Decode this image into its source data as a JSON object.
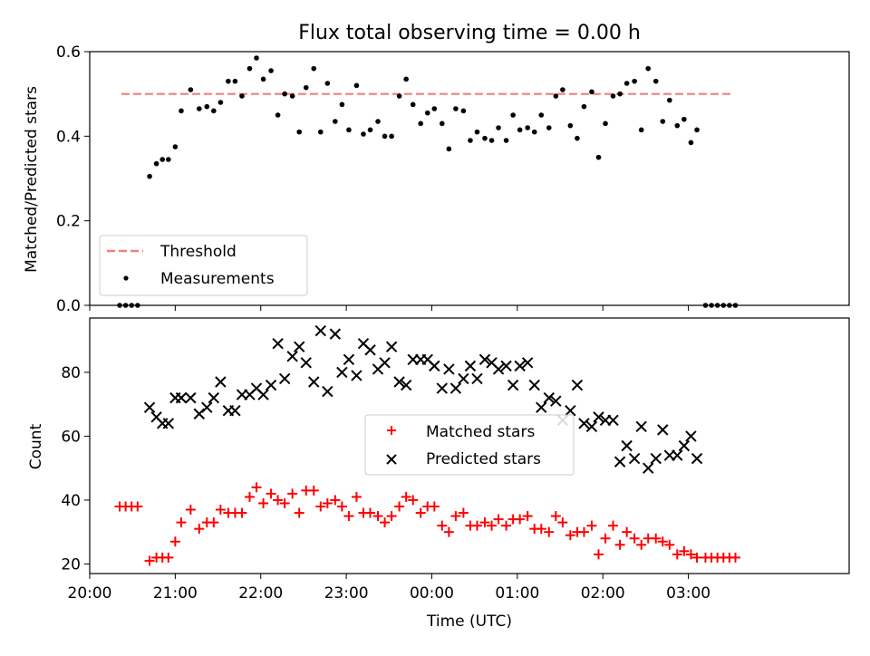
{
  "title": "Flux total observing time = 0.00 h",
  "colors": {
    "threshold": "#f08080",
    "matched": "#ff0000",
    "predicted": "#000000",
    "measure": "#000000"
  },
  "chart_data": [
    {
      "type": "scatter",
      "ylabel": "Matched/Predicted stars",
      "ylim": [
        0,
        0.6
      ],
      "yticks": [
        "0.0",
        "0.2",
        "0.4",
        "0.6"
      ],
      "xlim_hours": [
        20,
        28.88
      ],
      "threshold": {
        "value": 0.5,
        "x_start": 20.37,
        "x_end": 27.5
      },
      "legend": {
        "placement": "lower left",
        "threshold_label": "Threshold",
        "measurements_label": "Measurements"
      },
      "series": [
        {
          "name": "Measurements",
          "values": [
            [
              20.35,
              0
            ],
            [
              20.42,
              0
            ],
            [
              20.49,
              0
            ],
            [
              20.56,
              0
            ],
            [
              20.7,
              0.305
            ],
            [
              20.78,
              0.335
            ],
            [
              20.85,
              0.345
            ],
            [
              20.92,
              0.345
            ],
            [
              21.0,
              0.375
            ],
            [
              21.07,
              0.46
            ],
            [
              21.18,
              0.51
            ],
            [
              21.28,
              0.465
            ],
            [
              21.37,
              0.47
            ],
            [
              21.45,
              0.46
            ],
            [
              21.53,
              0.48
            ],
            [
              21.62,
              0.53
            ],
            [
              21.7,
              0.53
            ],
            [
              21.78,
              0.495
            ],
            [
              21.87,
              0.56
            ],
            [
              21.95,
              0.585
            ],
            [
              22.03,
              0.535
            ],
            [
              22.12,
              0.555
            ],
            [
              22.2,
              0.45
            ],
            [
              22.28,
              0.5
            ],
            [
              22.37,
              0.495
            ],
            [
              22.45,
              0.41
            ],
            [
              22.53,
              0.515
            ],
            [
              22.62,
              0.56
            ],
            [
              22.7,
              0.41
            ],
            [
              22.78,
              0.525
            ],
            [
              22.87,
              0.435
            ],
            [
              22.95,
              0.475
            ],
            [
              23.03,
              0.415
            ],
            [
              23.12,
              0.52
            ],
            [
              23.2,
              0.405
            ],
            [
              23.28,
              0.415
            ],
            [
              23.37,
              0.435
            ],
            [
              23.45,
              0.4
            ],
            [
              23.53,
              0.4
            ],
            [
              23.62,
              0.495
            ],
            [
              23.7,
              0.535
            ],
            [
              23.78,
              0.475
            ],
            [
              23.87,
              0.43
            ],
            [
              23.95,
              0.455
            ],
            [
              24.03,
              0.465
            ],
            [
              24.12,
              0.43
            ],
            [
              24.2,
              0.37
            ],
            [
              24.28,
              0.465
            ],
            [
              24.37,
              0.46
            ],
            [
              24.45,
              0.39
            ],
            [
              24.53,
              0.41
            ],
            [
              24.62,
              0.395
            ],
            [
              24.7,
              0.39
            ],
            [
              24.78,
              0.42
            ],
            [
              24.87,
              0.39
            ],
            [
              24.95,
              0.45
            ],
            [
              25.03,
              0.415
            ],
            [
              25.12,
              0.42
            ],
            [
              25.2,
              0.41
            ],
            [
              25.28,
              0.45
            ],
            [
              25.37,
              0.42
            ],
            [
              25.45,
              0.495
            ],
            [
              25.53,
              0.51
            ],
            [
              25.62,
              0.425
            ],
            [
              25.7,
              0.395
            ],
            [
              25.78,
              0.47
            ],
            [
              25.87,
              0.505
            ],
            [
              25.95,
              0.35
            ],
            [
              26.03,
              0.43
            ],
            [
              26.12,
              0.495
            ],
            [
              26.2,
              0.5
            ],
            [
              26.28,
              0.525
            ],
            [
              26.37,
              0.53
            ],
            [
              26.45,
              0.415
            ],
            [
              26.53,
              0.56
            ],
            [
              26.62,
              0.53
            ],
            [
              26.7,
              0.435
            ],
            [
              26.78,
              0.485
            ],
            [
              26.87,
              0.425
            ],
            [
              26.95,
              0.44
            ],
            [
              27.03,
              0.385
            ],
            [
              27.1,
              0.415
            ],
            [
              27.2,
              0
            ],
            [
              27.27,
              0
            ],
            [
              27.34,
              0
            ],
            [
              27.41,
              0
            ],
            [
              27.48,
              0
            ],
            [
              27.55,
              0
            ]
          ]
        }
      ]
    },
    {
      "type": "scatter",
      "xlabel": "Time (UTC)",
      "ylabel": "Count",
      "ylim": [
        17,
        97
      ],
      "yticks": [
        "20",
        "40",
        "60",
        "80"
      ],
      "xticks": [
        "20:00",
        "21:00",
        "22:00",
        "23:00",
        "00:00",
        "01:00",
        "02:00",
        "03:00"
      ],
      "xlim_hours": [
        20,
        28.88
      ],
      "legend": {
        "placement": "center"
      },
      "series": [
        {
          "name": "Matched stars",
          "marker": "plus",
          "values": [
            [
              20.35,
              38
            ],
            [
              20.42,
              38
            ],
            [
              20.49,
              38
            ],
            [
              20.56,
              38
            ],
            [
              20.7,
              21
            ],
            [
              20.78,
              22
            ],
            [
              20.85,
              22
            ],
            [
              20.92,
              22
            ],
            [
              21.0,
              27
            ],
            [
              21.07,
              33
            ],
            [
              21.18,
              37
            ],
            [
              21.28,
              31
            ],
            [
              21.37,
              33
            ],
            [
              21.45,
              33
            ],
            [
              21.53,
              37
            ],
            [
              21.62,
              36
            ],
            [
              21.7,
              36
            ],
            [
              21.78,
              36
            ],
            [
              21.87,
              41
            ],
            [
              21.95,
              44
            ],
            [
              22.03,
              39
            ],
            [
              22.12,
              42
            ],
            [
              22.2,
              40
            ],
            [
              22.28,
              39
            ],
            [
              22.37,
              42
            ],
            [
              22.45,
              36
            ],
            [
              22.53,
              43
            ],
            [
              22.62,
              43
            ],
            [
              22.7,
              38
            ],
            [
              22.78,
              39
            ],
            [
              22.87,
              40
            ],
            [
              22.95,
              38
            ],
            [
              23.03,
              35
            ],
            [
              23.12,
              41
            ],
            [
              23.2,
              36
            ],
            [
              23.28,
              36
            ],
            [
              23.37,
              35
            ],
            [
              23.45,
              33
            ],
            [
              23.53,
              35
            ],
            [
              23.62,
              38
            ],
            [
              23.7,
              41
            ],
            [
              23.78,
              40
            ],
            [
              23.87,
              36
            ],
            [
              23.95,
              38
            ],
            [
              24.03,
              38
            ],
            [
              24.12,
              32
            ],
            [
              24.2,
              30
            ],
            [
              24.28,
              35
            ],
            [
              24.37,
              36
            ],
            [
              24.45,
              32
            ],
            [
              24.53,
              32
            ],
            [
              24.62,
              33
            ],
            [
              24.7,
              32
            ],
            [
              24.78,
              34
            ],
            [
              24.87,
              32
            ],
            [
              24.95,
              34
            ],
            [
              25.03,
              34
            ],
            [
              25.12,
              35
            ],
            [
              25.2,
              31
            ],
            [
              25.28,
              31
            ],
            [
              25.37,
              30
            ],
            [
              25.45,
              35
            ],
            [
              25.53,
              33
            ],
            [
              25.62,
              29
            ],
            [
              25.7,
              30
            ],
            [
              25.78,
              30
            ],
            [
              25.87,
              32
            ],
            [
              25.95,
              23
            ],
            [
              26.03,
              28
            ],
            [
              26.12,
              32
            ],
            [
              26.2,
              26
            ],
            [
              26.28,
              30
            ],
            [
              26.37,
              28
            ],
            [
              26.45,
              26
            ],
            [
              26.53,
              28
            ],
            [
              26.62,
              28
            ],
            [
              26.7,
              27
            ],
            [
              26.78,
              26
            ],
            [
              26.87,
              23
            ],
            [
              26.95,
              24
            ],
            [
              27.03,
              23
            ],
            [
              27.1,
              22
            ],
            [
              27.2,
              22
            ],
            [
              27.27,
              22
            ],
            [
              27.34,
              22
            ],
            [
              27.41,
              22
            ],
            [
              27.48,
              22
            ],
            [
              27.55,
              22
            ]
          ]
        },
        {
          "name": "Predicted stars",
          "marker": "x",
          "values": [
            [
              20.7,
              69
            ],
            [
              20.78,
              66
            ],
            [
              20.85,
              64
            ],
            [
              20.92,
              64
            ],
            [
              21.0,
              72
            ],
            [
              21.07,
              72
            ],
            [
              21.18,
              72
            ],
            [
              21.28,
              67
            ],
            [
              21.37,
              69
            ],
            [
              21.45,
              72
            ],
            [
              21.53,
              77
            ],
            [
              21.62,
              68
            ],
            [
              21.7,
              68
            ],
            [
              21.78,
              73
            ],
            [
              21.87,
              73
            ],
            [
              21.95,
              75
            ],
            [
              22.03,
              73
            ],
            [
              22.12,
              76
            ],
            [
              22.2,
              89
            ],
            [
              22.28,
              78
            ],
            [
              22.37,
              85
            ],
            [
              22.45,
              88
            ],
            [
              22.53,
              83
            ],
            [
              22.62,
              77
            ],
            [
              22.7,
              93
            ],
            [
              22.78,
              74
            ],
            [
              22.87,
              92
            ],
            [
              22.95,
              80
            ],
            [
              23.03,
              84
            ],
            [
              23.12,
              79
            ],
            [
              23.2,
              89
            ],
            [
              23.28,
              87
            ],
            [
              23.37,
              81
            ],
            [
              23.45,
              83
            ],
            [
              23.53,
              88
            ],
            [
              23.62,
              77
            ],
            [
              23.7,
              76
            ],
            [
              23.78,
              84
            ],
            [
              23.87,
              84
            ],
            [
              23.95,
              84
            ],
            [
              24.03,
              82
            ],
            [
              24.12,
              75
            ],
            [
              24.2,
              81
            ],
            [
              24.28,
              75
            ],
            [
              24.37,
              78
            ],
            [
              24.45,
              82
            ],
            [
              24.53,
              78
            ],
            [
              24.62,
              84
            ],
            [
              24.7,
              83
            ],
            [
              24.78,
              81
            ],
            [
              24.87,
              82
            ],
            [
              24.95,
              76
            ],
            [
              25.03,
              82
            ],
            [
              25.12,
              83
            ],
            [
              25.2,
              76
            ],
            [
              25.28,
              69
            ],
            [
              25.37,
              72
            ],
            [
              25.45,
              71
            ],
            [
              25.53,
              65
            ],
            [
              25.62,
              68
            ],
            [
              25.7,
              76
            ],
            [
              25.78,
              64
            ],
            [
              25.87,
              63
            ],
            [
              25.95,
              66
            ],
            [
              26.03,
              65
            ],
            [
              26.12,
              65
            ],
            [
              26.2,
              52
            ],
            [
              26.28,
              57
            ],
            [
              26.37,
              53
            ],
            [
              26.45,
              63
            ],
            [
              26.53,
              50
            ],
            [
              26.62,
              53
            ],
            [
              26.7,
              62
            ],
            [
              26.78,
              54
            ],
            [
              26.87,
              54
            ],
            [
              26.95,
              57
            ],
            [
              27.03,
              60
            ],
            [
              27.1,
              53
            ]
          ]
        }
      ]
    }
  ]
}
